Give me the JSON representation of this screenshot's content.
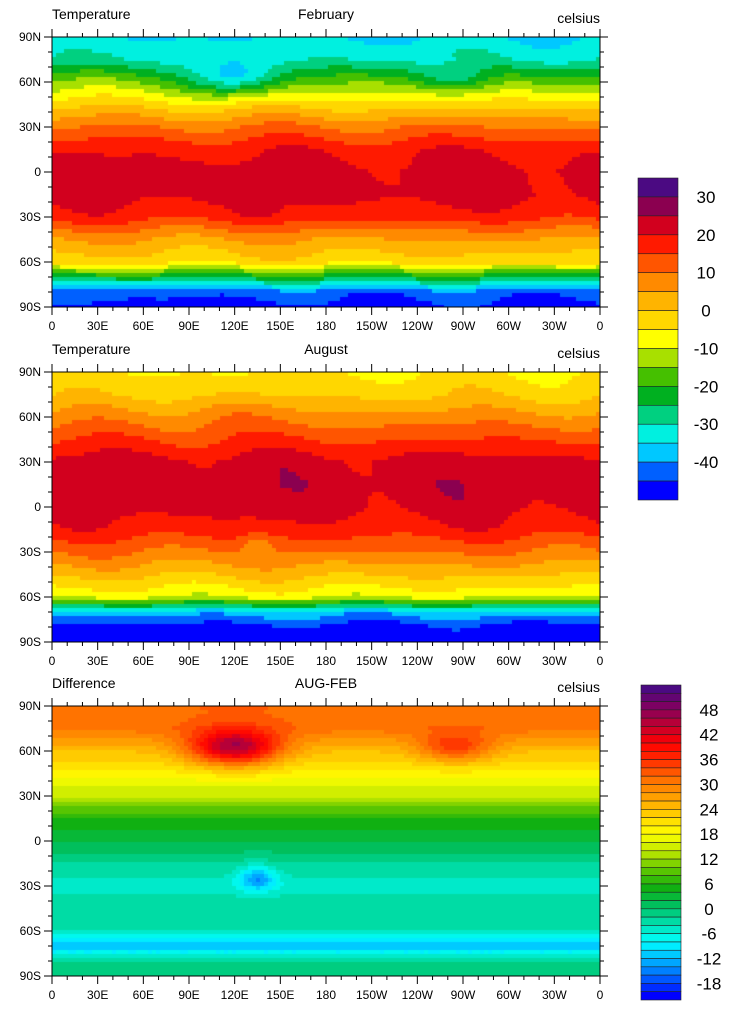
{
  "panels": [
    {
      "left_title": "Temperature",
      "center_title": "February",
      "right_title": "celsius",
      "field": "feb"
    },
    {
      "left_title": "Temperature",
      "center_title": "August",
      "right_title": "celsius",
      "field": "aug"
    },
    {
      "left_title": "Difference",
      "center_title": "AUG-FEB",
      "right_title": "celsius",
      "field": "diff"
    }
  ],
  "x_tick_labels": [
    "0",
    "30E",
    "60E",
    "90E",
    "120E",
    "150E",
    "180",
    "150W",
    "120W",
    "90W",
    "60W",
    "30W",
    "0"
  ],
  "y_tick_labels": [
    "90N",
    "60N",
    "30N",
    "0",
    "30S",
    "60S",
    "90S"
  ],
  "colorbars": [
    {
      "name": "temperature",
      "levels_min": -40,
      "levels_max": 35,
      "step": 5,
      "labels": [
        "30",
        "20",
        "10",
        "0",
        "-10",
        "-20",
        "-30",
        "-40"
      ],
      "colors": [
        "#0000ff",
        "#0060ff",
        "#00c8ff",
        "#00f0e0",
        "#00d080",
        "#00b020",
        "#45c000",
        "#a8e000",
        "#ffff00",
        "#ffd700",
        "#ffb400",
        "#ff8a00",
        "#ff5500",
        "#ff1a00",
        "#d2001e",
        "#8b0050",
        "#4b0a82"
      ]
    },
    {
      "name": "difference",
      "levels_min": -22,
      "levels_max": 52,
      "step": 2,
      "labels": [
        "48",
        "42",
        "36",
        "30",
        "24",
        "18",
        "12",
        "6",
        "0",
        "-6",
        "-12",
        "-18"
      ],
      "key_colors": [
        "#0000ff",
        "#0060ff",
        "#00b4ff",
        "#00ffff",
        "#00e0b0",
        "#00c060",
        "#10b010",
        "#60c800",
        "#c0e800",
        "#ffff00",
        "#ffd000",
        "#ffa000",
        "#ff7000",
        "#ff3000",
        "#ff0000",
        "#c00030",
        "#800060",
        "#4b0a82"
      ]
    }
  ]
}
